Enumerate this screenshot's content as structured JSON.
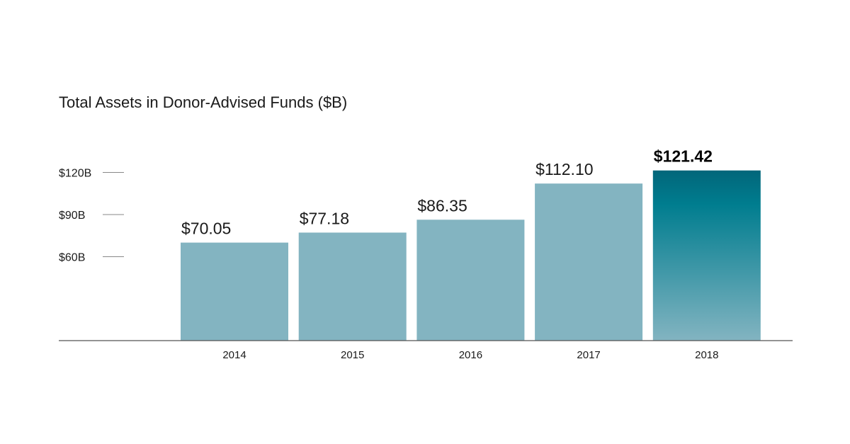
{
  "chart_data": {
    "type": "bar",
    "title": "Total Assets in Donor-Advised Funds ($B)",
    "xlabel": "",
    "ylabel": "",
    "categories": [
      "2014",
      "2015",
      "2016",
      "2017",
      "2018"
    ],
    "values": [
      70.05,
      77.18,
      86.35,
      112.1,
      121.42
    ],
    "data_labels": [
      "$70.05",
      "$77.18",
      "$86.35",
      "$112.10",
      "$121.42"
    ],
    "highlight_index": 4,
    "yticks": [
      {
        "value": 120,
        "label": "$120B"
      },
      {
        "value": 90,
        "label": "$90B"
      },
      {
        "value": 60,
        "label": "$60B"
      }
    ],
    "ylim": [
      0,
      125
    ],
    "grid": false,
    "legend": "none",
    "colors": {
      "bar": "#83b4c1",
      "highlight_top": "#02667a",
      "highlight_mid": "#007d8f",
      "highlight_bottom": "#83b4c1",
      "axis": "#555555",
      "tick": "#888888"
    }
  }
}
